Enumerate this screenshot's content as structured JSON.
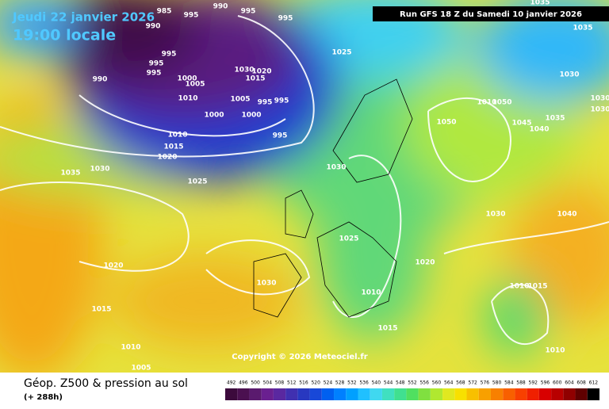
{
  "header": {
    "date": "Jeudi 22 janvier 2026",
    "time": "19:00 locale",
    "run": "Run GFS 18 Z du Samedi 10 janvier 2026"
  },
  "copyright": "Copyright © 2026 Meteociel.fr",
  "footer": {
    "title": "Géop. Z500 & pression au sol",
    "lead": "(+ 288h)"
  },
  "isobar_labels": [
    985,
    995,
    990,
    995,
    990,
    995,
    995,
    995,
    995,
    990,
    1000,
    1005,
    1010,
    1030,
    1020,
    1015,
    1005,
    995,
    995,
    1000,
    1000,
    995,
    1010,
    1015,
    1020,
    1025,
    1035,
    1030,
    1025,
    1035,
    1035,
    1030,
    1030,
    1030,
    1010,
    1050,
    1050,
    1045,
    1040,
    1035,
    1030,
    1025,
    1030,
    1040,
    1020,
    1020,
    1030,
    1010,
    1010,
    1015,
    1015,
    1015,
    1010,
    1010,
    1005
  ],
  "colorbar": {
    "ticks": [
      492,
      496,
      500,
      504,
      508,
      512,
      516,
      520,
      524,
      528,
      532,
      536,
      540,
      544,
      548,
      552,
      556,
      560,
      564,
      568,
      572,
      576,
      580,
      584,
      588,
      592,
      596,
      600,
      604,
      608,
      612
    ],
    "colors": [
      "#3c0a3c",
      "#4b1050",
      "#5a1a6e",
      "#6a2090",
      "#5a28a0",
      "#4030b0",
      "#2838c0",
      "#1848d8",
      "#0060f0",
      "#0080ff",
      "#00a0ff",
      "#20c0ff",
      "#40d8f0",
      "#40e0c0",
      "#40e090",
      "#50e060",
      "#80e040",
      "#b0e830",
      "#e0e820",
      "#f8e000",
      "#f8c000",
      "#f8a000",
      "#f88000",
      "#f86000",
      "#f84000",
      "#f02000",
      "#d80000",
      "#b80000",
      "#900000",
      "#600000",
      "#000000"
    ]
  }
}
